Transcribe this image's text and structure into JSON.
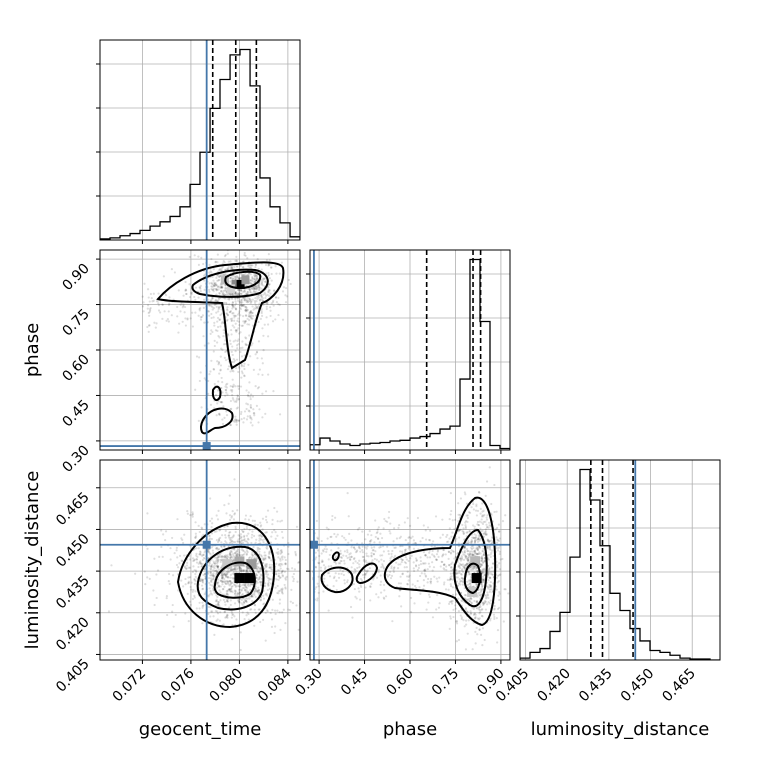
{
  "chart_data": {
    "type": "scatter",
    "plot_kind": "corner",
    "parameters": [
      "geocent_time",
      "phase",
      "luminosity_distance"
    ],
    "ranges": {
      "geocent_time": [
        0.0685,
        0.085
      ],
      "phase": [
        0.27,
        0.93
      ],
      "luminosity_distance": [
        0.403,
        0.475
      ]
    },
    "ticks": {
      "geocent_time": [
        0.072,
        0.076,
        0.08,
        0.084
      ],
      "phase": [
        0.3,
        0.45,
        0.6,
        0.75,
        0.9
      ],
      "luminosity_distance": [
        0.405,
        0.42,
        0.435,
        0.45,
        0.465
      ]
    },
    "tick_labels": {
      "geocent_time": [
        "0.072",
        "0.076",
        "0.080",
        "0.084"
      ],
      "phase": [
        "0.30",
        "0.45",
        "0.60",
        "0.75",
        "0.90"
      ],
      "luminosity_distance": [
        "0.405",
        "0.420",
        "0.435",
        "0.450",
        "0.465"
      ]
    },
    "truths": {
      "geocent_time": 0.0773,
      "phase": 0.283,
      "luminosity_distance": 0.4445
    },
    "quantiles": {
      "geocent_time": [
        0.0778,
        0.0797,
        0.0814
      ],
      "phase": [
        0.655,
        0.808,
        0.833
      ],
      "luminosity_distance": [
        0.4285,
        0.4327,
        0.4437
      ]
    },
    "histograms": {
      "geocent_time": {
        "edges": [
          0.0685,
          0.06933,
          0.07015,
          0.07098,
          0.0718,
          0.07263,
          0.07345,
          0.07428,
          0.0751,
          0.07593,
          0.07675,
          0.07758,
          0.0784,
          0.07923,
          0.08005,
          0.08088,
          0.0817,
          0.08253,
          0.08335,
          0.08418,
          0.085
        ],
        "counts": [
          1,
          2,
          4,
          6,
          9,
          13,
          17,
          22,
          31,
          52,
          82,
          123,
          150,
          173,
          178,
          144,
          58,
          31,
          16,
          3
        ]
      },
      "phase": {
        "edges": [
          0.27,
          0.303,
          0.336,
          0.369,
          0.402,
          0.435,
          0.468,
          0.501,
          0.534,
          0.567,
          0.6,
          0.633,
          0.666,
          0.699,
          0.732,
          0.765,
          0.798,
          0.831,
          0.864,
          0.897,
          0.93
        ],
        "counts": [
          7,
          16,
          12,
          8,
          6,
          8,
          9,
          10,
          12,
          13,
          16,
          18,
          22,
          28,
          32,
          95,
          255,
          172,
          6,
          2
        ]
      },
      "luminosity_distance": {
        "edges": [
          0.403,
          0.4066,
          0.4102,
          0.4138,
          0.4174,
          0.421,
          0.4246,
          0.4282,
          0.4318,
          0.4354,
          0.439,
          0.4426,
          0.4462,
          0.4498,
          0.4534,
          0.457,
          0.4606,
          0.4642,
          0.4678,
          0.4714,
          0.475
        ],
        "counts": [
          2,
          8,
          12,
          30,
          50,
          108,
          200,
          168,
          120,
          70,
          52,
          33,
          20,
          10,
          8,
          5,
          2,
          1,
          1,
          0
        ]
      }
    },
    "density_peaks": [
      {
        "x": "geocent_time",
        "y": "phase",
        "x_value": 0.08,
        "y_value": 0.815
      },
      {
        "x": "geocent_time",
        "y": "luminosity_distance",
        "x_value": 0.08,
        "y_value": 0.4325
      },
      {
        "x": "phase",
        "y": "luminosity_distance",
        "x_value": 0.82,
        "y_value": 0.4325
      }
    ],
    "grid": true
  }
}
